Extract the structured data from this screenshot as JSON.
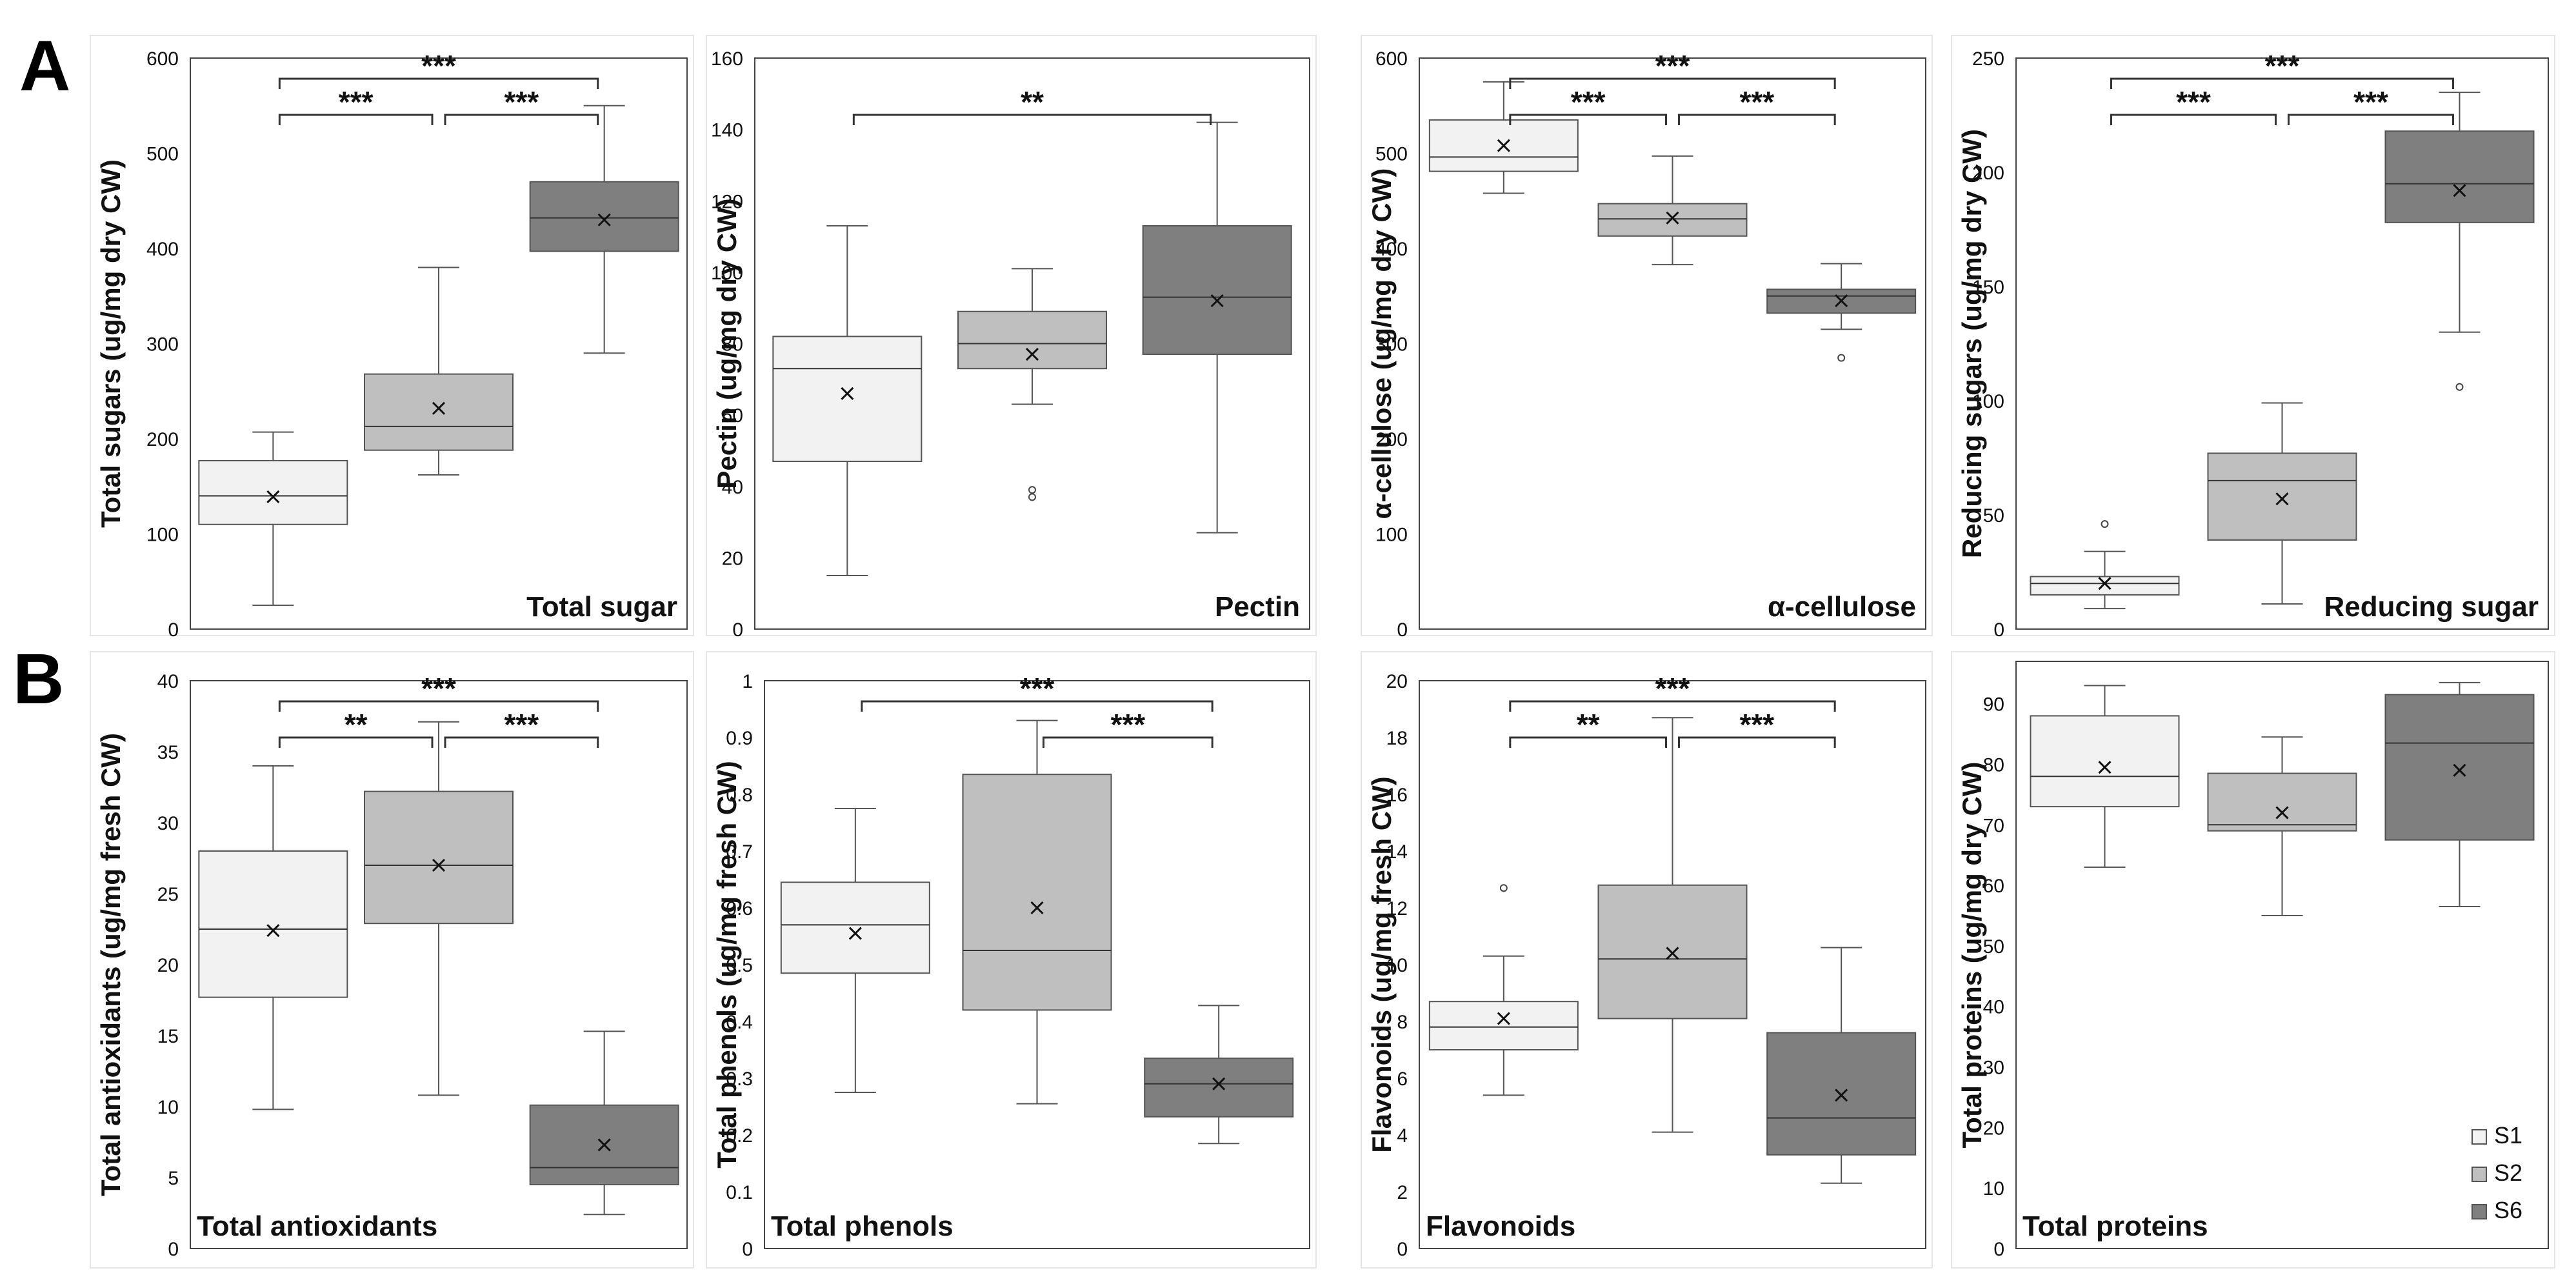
{
  "figure": {
    "panel_letters": [
      "A",
      "B"
    ],
    "colors": {
      "S1": "#f2f2f2",
      "S2": "#bfbfbf",
      "S6": "#7f7f7f",
      "stroke": "#555555",
      "axis": "#444444"
    }
  },
  "legend": {
    "entries": [
      "S1",
      "S2",
      "S6"
    ]
  },
  "chart_data": [
    {
      "type": "box",
      "title": "Total sugar",
      "ylabel": "Total sugars (ug/mg dry CW)",
      "ylim": [
        0,
        600
      ],
      "yticks": [
        0,
        100,
        200,
        300,
        400,
        500,
        600
      ],
      "tick_labels": [
        "0",
        "100",
        "200",
        "300",
        "400",
        "500",
        "600"
      ],
      "label_position": "bottom-right",
      "series": [
        {
          "name": "S1",
          "min": 25,
          "q1": 110,
          "median": 140,
          "q3": 177,
          "max": 207,
          "mean": 139,
          "outliers": []
        },
        {
          "name": "S2",
          "min": 162,
          "q1": 188,
          "median": 213,
          "q3": 268,
          "max": 380,
          "mean": 232,
          "outliers": []
        },
        {
          "name": "S6",
          "min": 290,
          "q1": 397,
          "median": 432,
          "q3": 470,
          "max": 550,
          "mean": 430,
          "outliers": []
        }
      ],
      "significance": [
        {
          "from": 0,
          "to": 1,
          "level": 1,
          "text": "***"
        },
        {
          "from": 1,
          "to": 2,
          "level": 1,
          "text": "***"
        },
        {
          "from": 0,
          "to": 2,
          "level": 2,
          "text": "***"
        }
      ]
    },
    {
      "type": "box",
      "title": "Pectin",
      "ylabel": "Pectin (ug/mg dry CW)",
      "ylim": [
        0,
        160
      ],
      "yticks": [
        0,
        20,
        40,
        60,
        80,
        100,
        120,
        140,
        160
      ],
      "tick_labels": [
        "0",
        "20",
        "40",
        "60",
        "80",
        "100",
        "120",
        "140",
        "160"
      ],
      "label_position": "bottom-right",
      "series": [
        {
          "name": "S1",
          "min": 15,
          "q1": 47,
          "median": 73,
          "q3": 82,
          "max": 113,
          "mean": 66,
          "outliers": []
        },
        {
          "name": "S2",
          "min": 63,
          "q1": 73,
          "median": 80,
          "q3": 89,
          "max": 101,
          "mean": 77,
          "outliers": [
            37,
            39
          ]
        },
        {
          "name": "S6",
          "min": 27,
          "q1": 77,
          "median": 93,
          "q3": 113,
          "max": 142,
          "mean": 92,
          "outliers": []
        }
      ],
      "significance": [
        {
          "from": 0,
          "to": 2,
          "level": 1,
          "text": "**"
        }
      ]
    },
    {
      "type": "box",
      "title": "α-cellulose",
      "ylabel": "α-cellulose (ug/mg dry CW)",
      "ylim": [
        0,
        600
      ],
      "yticks": [
        0,
        100,
        200,
        300,
        400,
        500,
        600
      ],
      "tick_labels": [
        "0",
        "100",
        "200",
        "300",
        "400",
        "500",
        "600"
      ],
      "label_position": "bottom-right",
      "series": [
        {
          "name": "S1",
          "min": 458,
          "q1": 481,
          "median": 496,
          "q3": 535,
          "max": 575,
          "mean": 508,
          "outliers": []
        },
        {
          "name": "S2",
          "min": 383,
          "q1": 413,
          "median": 431,
          "q3": 447,
          "max": 497,
          "mean": 432,
          "outliers": []
        },
        {
          "name": "S6",
          "min": 315,
          "q1": 332,
          "median": 350,
          "q3": 357,
          "max": 384,
          "mean": 345,
          "outliers": [
            285
          ]
        }
      ],
      "significance": [
        {
          "from": 0,
          "to": 1,
          "level": 1,
          "text": "***"
        },
        {
          "from": 1,
          "to": 2,
          "level": 1,
          "text": "***"
        },
        {
          "from": 0,
          "to": 2,
          "level": 2,
          "text": "***"
        }
      ]
    },
    {
      "type": "box",
      "title": "Reducing sugar",
      "ylabel": "Reducing sugars (ug/mg dry CW)",
      "ylim": [
        0,
        250
      ],
      "yticks": [
        0,
        50,
        100,
        150,
        200,
        250
      ],
      "tick_labels": [
        "0",
        "50",
        "100",
        "150",
        "200",
        "250"
      ],
      "label_position": "bottom-right",
      "series": [
        {
          "name": "S1",
          "min": 9,
          "q1": 15,
          "median": 20,
          "q3": 23,
          "max": 34,
          "mean": 20,
          "outliers": [
            46
          ]
        },
        {
          "name": "S2",
          "min": 11,
          "q1": 39,
          "median": 65,
          "q3": 77,
          "max": 99,
          "mean": 57,
          "outliers": []
        },
        {
          "name": "S6",
          "min": 130,
          "q1": 178,
          "median": 195,
          "q3": 218,
          "max": 235,
          "mean": 192,
          "outliers": [
            106
          ]
        }
      ],
      "significance": [
        {
          "from": 0,
          "to": 1,
          "level": 1,
          "text": "***"
        },
        {
          "from": 1,
          "to": 2,
          "level": 1,
          "text": "***"
        },
        {
          "from": 0,
          "to": 2,
          "level": 2,
          "text": "***"
        }
      ]
    },
    {
      "type": "box",
      "title": "Total antioxidants",
      "ylabel": "Total antioxidants (ug/mg fresh CW)",
      "ylim": [
        0,
        40
      ],
      "yticks": [
        0,
        5,
        10,
        15,
        20,
        25,
        30,
        35,
        40
      ],
      "tick_labels": [
        "0",
        "5",
        "10",
        "15",
        "20",
        "25",
        "30",
        "35",
        "40"
      ],
      "label_position": "bottom-left",
      "series": [
        {
          "name": "S1",
          "min": 9.8,
          "q1": 17.7,
          "median": 22.5,
          "q3": 28,
          "max": 34,
          "mean": 22.4,
          "outliers": []
        },
        {
          "name": "S2",
          "min": 10.8,
          "q1": 22.9,
          "median": 27,
          "q3": 32.2,
          "max": 37.1,
          "mean": 27,
          "outliers": []
        },
        {
          "name": "S6",
          "min": 2.4,
          "q1": 4.5,
          "median": 5.7,
          "q3": 10.1,
          "max": 15.3,
          "mean": 7.3,
          "outliers": []
        }
      ],
      "significance": [
        {
          "from": 0,
          "to": 1,
          "level": 1,
          "text": "**"
        },
        {
          "from": 1,
          "to": 2,
          "level": 1,
          "text": "***"
        },
        {
          "from": 0,
          "to": 2,
          "level": 2,
          "text": "***"
        }
      ]
    },
    {
      "type": "box",
      "title": "Total phenols",
      "ylabel": "Total phenols (ug/mg fresh CW)",
      "ylim": [
        0,
        1
      ],
      "yticks": [
        0,
        0.1,
        0.2,
        0.3,
        0.4,
        0.5,
        0.6,
        0.7,
        0.8,
        0.9,
        1
      ],
      "tick_labels": [
        "0",
        "0.1",
        "0.2",
        "0.3",
        "0.4",
        "0.5",
        "0.6",
        "0.7",
        "0.8",
        "0.9",
        "1"
      ],
      "label_position": "bottom-left",
      "series": [
        {
          "name": "S1",
          "min": 0.275,
          "q1": 0.485,
          "median": 0.57,
          "q3": 0.645,
          "max": 0.775,
          "mean": 0.555,
          "outliers": []
        },
        {
          "name": "S2",
          "min": 0.255,
          "q1": 0.42,
          "median": 0.525,
          "q3": 0.835,
          "max": 0.93,
          "mean": 0.6,
          "outliers": []
        },
        {
          "name": "S6",
          "min": 0.185,
          "q1": 0.232,
          "median": 0.29,
          "q3": 0.335,
          "max": 0.428,
          "mean": 0.29,
          "outliers": []
        }
      ],
      "significance": [
        {
          "from": 1,
          "to": 2,
          "level": 1,
          "text": "***"
        },
        {
          "from": 0,
          "to": 2,
          "level": 2,
          "text": "***"
        }
      ]
    },
    {
      "type": "box",
      "title": "Flavonoids",
      "ylabel": "Flavonoids (ug/mg fresh CW)",
      "ylim": [
        0,
        20
      ],
      "yticks": [
        0,
        2,
        4,
        6,
        8,
        10,
        12,
        14,
        16,
        18,
        20
      ],
      "tick_labels": [
        "0",
        "2",
        "4",
        "6",
        "8",
        "10",
        "12",
        "14",
        "16",
        "18",
        "20"
      ],
      "label_position": "bottom-left",
      "series": [
        {
          "name": "S1",
          "min": 5.4,
          "q1": 7,
          "median": 7.8,
          "q3": 8.7,
          "max": 10.3,
          "mean": 8.1,
          "outliers": [
            12.7
          ]
        },
        {
          "name": "S2",
          "min": 4.1,
          "q1": 8.1,
          "median": 10.2,
          "q3": 12.8,
          "max": 18.7,
          "mean": 10.4,
          "outliers": []
        },
        {
          "name": "S6",
          "min": 2.3,
          "q1": 3.3,
          "median": 4.6,
          "q3": 7.6,
          "max": 10.6,
          "mean": 5.4,
          "outliers": []
        }
      ],
      "significance": [
        {
          "from": 0,
          "to": 1,
          "level": 1,
          "text": "**"
        },
        {
          "from": 1,
          "to": 2,
          "level": 1,
          "text": "***"
        },
        {
          "from": 0,
          "to": 2,
          "level": 2,
          "text": "***"
        }
      ]
    },
    {
      "type": "box",
      "title": "Total proteins",
      "ylabel": "Total proteins (ug/mg dry CW)",
      "ylim": [
        0,
        97
      ],
      "yticks": [
        0,
        10,
        20,
        30,
        40,
        50,
        60,
        70,
        80,
        90
      ],
      "tick_labels": [
        "0",
        "10",
        "20",
        "30",
        "40",
        "50",
        "60",
        "70",
        "80",
        "90"
      ],
      "label_position": "bottom-left",
      "series": [
        {
          "name": "S1",
          "min": 63,
          "q1": 73,
          "median": 78,
          "q3": 88,
          "max": 93,
          "mean": 79.5,
          "outliers": []
        },
        {
          "name": "S2",
          "min": 55,
          "q1": 69,
          "median": 70,
          "q3": 78.5,
          "max": 84.5,
          "mean": 72,
          "outliers": []
        },
        {
          "name": "S6",
          "min": 56.5,
          "q1": 67.5,
          "median": 83.5,
          "q3": 91.5,
          "max": 93.5,
          "mean": 79,
          "outliers": []
        }
      ],
      "significance": []
    }
  ]
}
